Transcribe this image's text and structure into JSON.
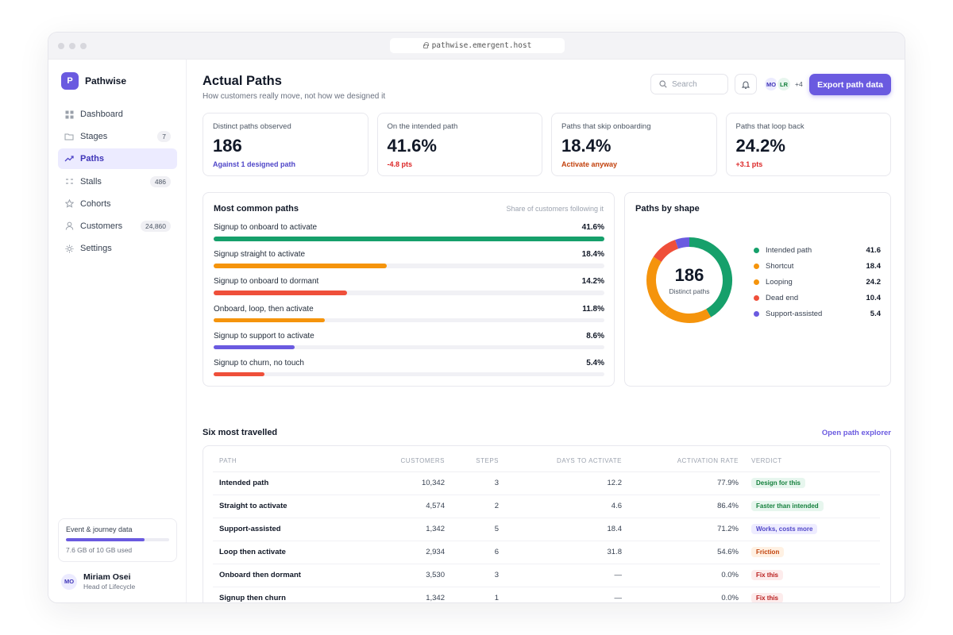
{
  "browser": {
    "url": "pathwise.emergent.host"
  },
  "brand": {
    "logo_letter": "P",
    "name": "Pathwise"
  },
  "nav": [
    {
      "label": "Dashboard",
      "icon": "grid-icon",
      "badge": ""
    },
    {
      "label": "Stages",
      "icon": "folder-icon",
      "badge": "7"
    },
    {
      "label": "Paths",
      "icon": "trend-icon",
      "badge": "",
      "active": true
    },
    {
      "label": "Stalls",
      "icon": "pause-icon",
      "badge": "486"
    },
    {
      "label": "Cohorts",
      "icon": "star-icon",
      "badge": ""
    },
    {
      "label": "Customers",
      "icon": "user-icon",
      "badge": "24,860"
    },
    {
      "label": "Settings",
      "icon": "gear-icon",
      "badge": ""
    }
  ],
  "storage": {
    "title": "Event & journey data",
    "used_fraction": 0.76,
    "note": "7.6 GB of 10 GB used"
  },
  "user": {
    "initials": "MO",
    "name": "Miriam Osei",
    "role": "Head of Lifecycle"
  },
  "header": {
    "title": "Actual Paths",
    "subtitle": "How customers really move, not how we designed it",
    "search_placeholder": "Search",
    "avatars": [
      "MO",
      "LR"
    ],
    "avatars_more": "+4",
    "export_label": "Export path data"
  },
  "kpis": [
    {
      "label": "Distinct paths observed",
      "value": "186",
      "note": "Against 1 designed path",
      "note_color": "#4f46c8"
    },
    {
      "label": "On the intended path",
      "value": "41.6%",
      "note": "-4.8 pts",
      "note_color": "#dc2626"
    },
    {
      "label": "Paths that skip onboarding",
      "value": "18.4%",
      "note": "Activate anyway",
      "note_color": "#c2410c"
    },
    {
      "label": "Paths that loop back",
      "value": "24.2%",
      "note": "+3.1 pts",
      "note_color": "#dc2626"
    }
  ],
  "common_paths": {
    "title": "Most common paths",
    "hint": "Share of customers following it",
    "items": [
      {
        "label": "Signup to onboard to activate",
        "pct": "41.6%",
        "share": 41.6,
        "color": "#16a06b"
      },
      {
        "label": "Signup straight to activate",
        "pct": "18.4%",
        "share": 18.4,
        "color": "#f5940c"
      },
      {
        "label": "Signup to onboard to dormant",
        "pct": "14.2%",
        "share": 14.2,
        "color": "#ef4f3a"
      },
      {
        "label": "Onboard, loop, then activate",
        "pct": "11.8%",
        "share": 11.8,
        "color": "#f5940c"
      },
      {
        "label": "Signup to support to activate",
        "pct": "8.6%",
        "share": 8.6,
        "color": "#6a5ae0"
      },
      {
        "label": "Signup to churn, no touch",
        "pct": "5.4%",
        "share": 5.4,
        "color": "#ef4f3a"
      }
    ]
  },
  "shape": {
    "title": "Paths by shape",
    "center_value": "186",
    "center_label": "Distinct paths",
    "legend": [
      {
        "label": "Intended path",
        "value": "41.6",
        "num": 41.6,
        "color": "#16a06b"
      },
      {
        "label": "Shortcut",
        "value": "18.4",
        "num": 18.4,
        "color": "#f5940c"
      },
      {
        "label": "Looping",
        "value": "24.2",
        "num": 24.2,
        "color": "#f5940c"
      },
      {
        "label": "Dead end",
        "value": "10.4",
        "num": 10.4,
        "color": "#ef4f3a"
      },
      {
        "label": "Support-assisted",
        "value": "5.4",
        "num": 5.4,
        "color": "#6a5ae0"
      }
    ]
  },
  "travelled": {
    "title": "Six most travelled",
    "link": "Open path explorer",
    "columns": [
      "PATH",
      "CUSTOMERS",
      "STEPS",
      "DAYS TO ACTIVATE",
      "ACTIVATION RATE",
      "VERDICT"
    ],
    "rows": [
      {
        "path": "Intended path",
        "customers": "10,342",
        "steps": "3",
        "days": "12.2",
        "rate": "77.9%",
        "verdict": "Design for this",
        "v_fg": "#15803d",
        "v_bg": "#e7f6ee"
      },
      {
        "path": "Straight to activate",
        "customers": "4,574",
        "steps": "2",
        "days": "4.6",
        "rate": "86.4%",
        "verdict": "Faster than intended",
        "v_fg": "#15803d",
        "v_bg": "#e7f6ee"
      },
      {
        "path": "Support-assisted",
        "customers": "1,342",
        "steps": "5",
        "days": "18.4",
        "rate": "71.2%",
        "verdict": "Works, costs more",
        "v_fg": "#4f46c8",
        "v_bg": "#eeecff"
      },
      {
        "path": "Loop then activate",
        "customers": "2,934",
        "steps": "6",
        "days": "31.8",
        "rate": "54.6%",
        "verdict": "Friction",
        "v_fg": "#c2410c",
        "v_bg": "#fff1e3"
      },
      {
        "path": "Onboard then dormant",
        "customers": "3,530",
        "steps": "3",
        "days": "—",
        "rate": "0.0%",
        "verdict": "Fix this",
        "v_fg": "#b91c1c",
        "v_bg": "#fdecec"
      },
      {
        "path": "Signup then churn",
        "customers": "1,342",
        "steps": "1",
        "days": "—",
        "rate": "0.0%",
        "verdict": "Fix this",
        "v_fg": "#b91c1c",
        "v_bg": "#fdecec"
      }
    ]
  }
}
